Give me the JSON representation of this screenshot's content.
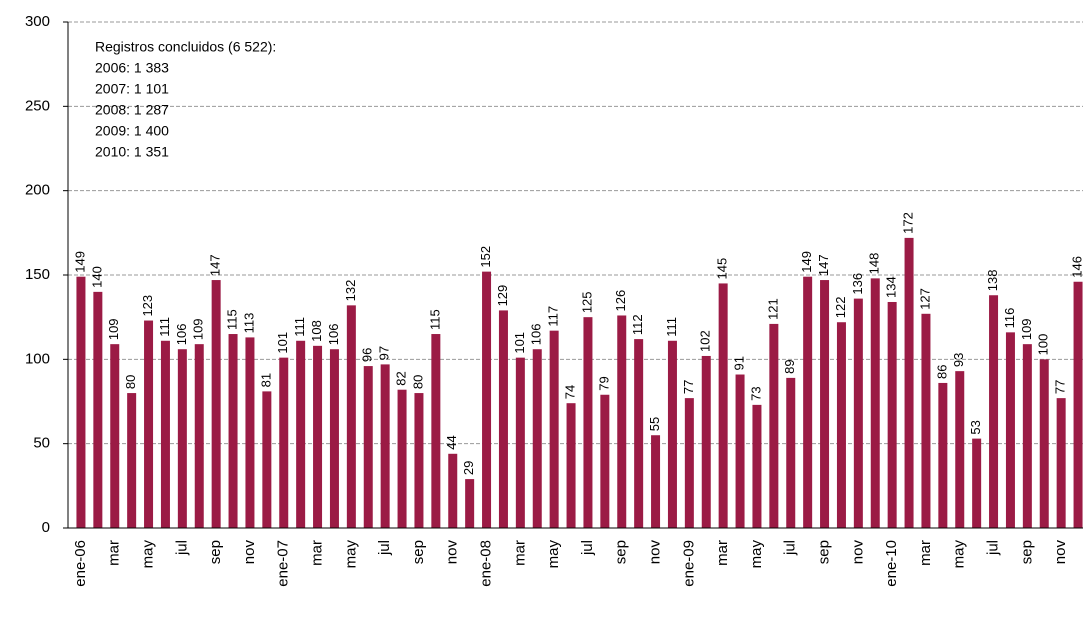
{
  "chart_data": {
    "type": "bar",
    "annotation": [
      "Registros  concluidos (6 522):",
      "2006: 1 383",
      "2007: 1 101",
      "2008: 1 287",
      "2009: 1 400",
      "2010: 1 351"
    ],
    "categories": [
      "ene-06",
      null,
      "mar",
      null,
      "may",
      null,
      "jul",
      null,
      "sep",
      null,
      "nov",
      null,
      "ene-07",
      null,
      "mar",
      null,
      "may",
      null,
      "jul",
      null,
      "sep",
      null,
      "nov",
      null,
      "ene-08",
      null,
      "mar",
      null,
      "may",
      null,
      "jul",
      null,
      "sep",
      null,
      "nov",
      null,
      "ene-09",
      null,
      "mar",
      null,
      "may",
      null,
      "jul",
      null,
      "sep",
      null,
      "nov",
      null,
      "ene-10",
      null,
      "mar",
      null,
      "may",
      null,
      "jul",
      null,
      "sep",
      null,
      "nov",
      null
    ],
    "values": [
      149,
      140,
      109,
      80,
      123,
      111,
      106,
      109,
      147,
      115,
      113,
      81,
      101,
      111,
      108,
      106,
      132,
      96,
      97,
      82,
      80,
      115,
      44,
      29,
      152,
      129,
      101,
      106,
      117,
      74,
      125,
      79,
      126,
      112,
      55,
      111,
      77,
      102,
      145,
      91,
      73,
      121,
      89,
      149,
      147,
      122,
      136,
      148,
      134,
      172,
      127,
      86,
      93,
      53,
      138,
      116,
      109,
      100,
      77,
      146
    ],
    "color": "#9b1b45",
    "ylim": [
      0,
      300
    ],
    "yticks": [
      0,
      50,
      100,
      150,
      200,
      250,
      300
    ],
    "grid": true
  }
}
